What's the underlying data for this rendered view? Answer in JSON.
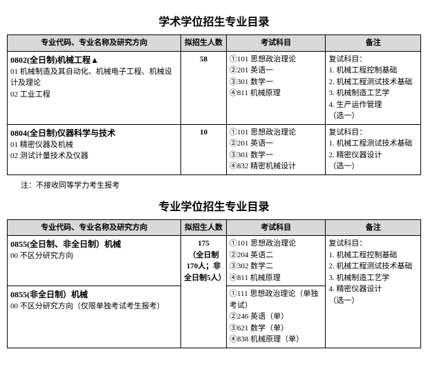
{
  "section1": {
    "title": "学术学位招生专业目录",
    "headers": {
      "col1": "专业代码、专业名称及研究方向",
      "col2": "拟招生人数",
      "col3": "考试科目",
      "col4": "备注"
    },
    "rows": [
      {
        "major": "0802(全日制)机械工程▲",
        "dirs": "01 机械制造及其自动化、机械电子工程、机械设计及理论\n02 工业工程",
        "count": "58",
        "exams": "①101 思想政治理论\n②201 英语一\n③301 数学一\n④811 机械原理",
        "remark": "复试科目：\n1. 机械工程控制基础\n2. 机械工程测试技术基础\n3. 机械制造工艺学\n4. 生产运作管理\n（选一）"
      },
      {
        "major": "0804(全日制)仪器科学与技术",
        "dirs": "01 精密仪器及机械\n02 测试计量技术及仪器",
        "count": "10",
        "exams": "①101 思想政治理论\n②201 英语一\n③301 数学一\n④832 精密机械设计",
        "remark": "复试科目：\n1. 机械工程测试技术基础\n2. 精密仪器设计\n（选一）"
      }
    ],
    "note": "注：不接收同等学力考生报考"
  },
  "section2": {
    "title": "专业学位招生专业目录",
    "headers": {
      "col1": "专业代码、专业名称及研究方向",
      "col2": "拟招生人数",
      "col3": "考试科目",
      "col4": "备注"
    },
    "merged": {
      "count": "175",
      "count_note": "（全日制170人；非全日制5人）",
      "remark": "复试科目：\n1. 机械工程控制基础\n2. 机械工程测试技术基础\n3. 机械制造工艺学\n4. 精密仪器设计\n（选一）"
    },
    "rows": [
      {
        "major": "0855(全日制、非全日制）机械",
        "dirs": "00 不区分研究方向",
        "exams": "①101 思想政治理论\n②204 英语二\n③302 数学二\n④811 机械原理"
      },
      {
        "major": "0855(非全日制）机械",
        "dirs": "00 不区分研究方向（仅限单独考试考生报考）",
        "exams": "①111 思想政治理论（单独考试）\n②246 英语（单）\n③621 数学（单）\n④838 机械原理（单）"
      }
    ]
  }
}
